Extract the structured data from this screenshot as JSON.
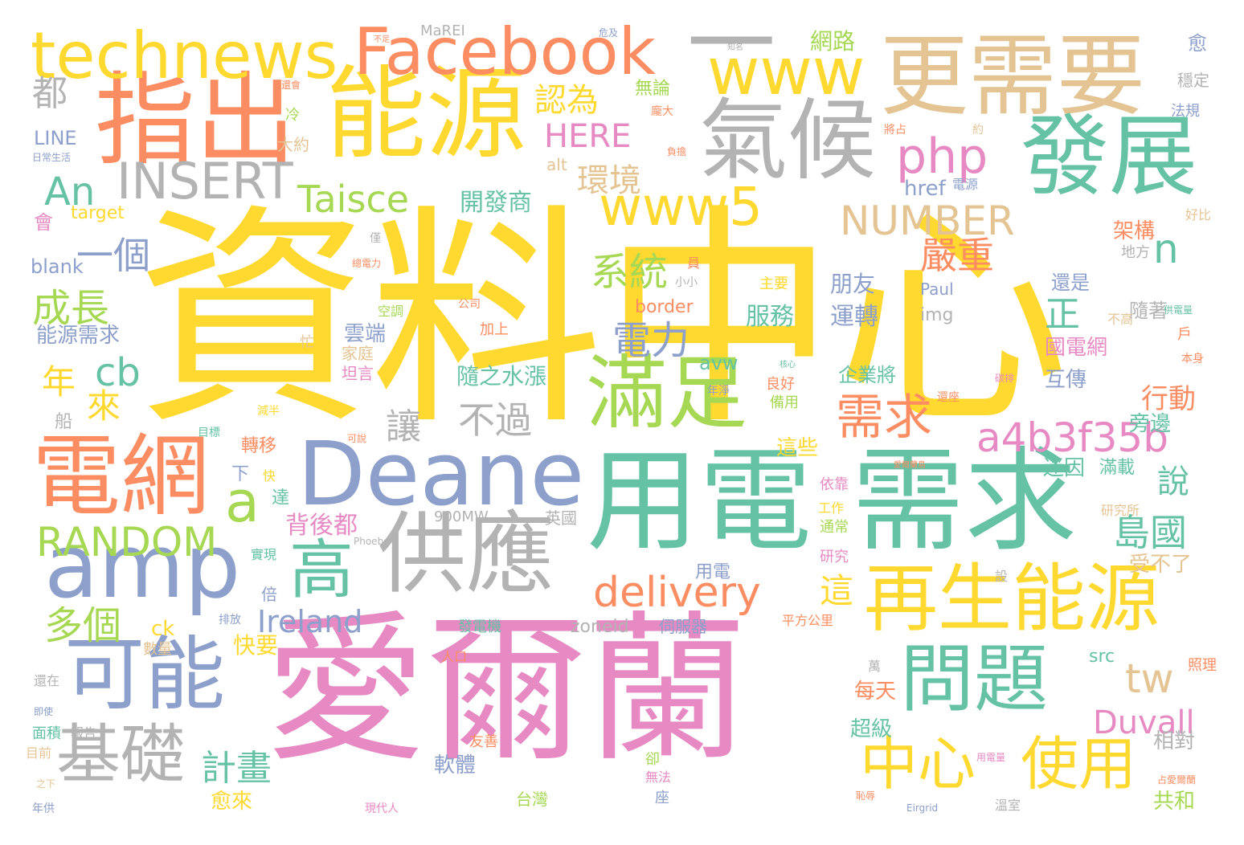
{
  "colors": {
    "yellow": "#FFD92F",
    "pink": "#E78AC3",
    "green": "#66C2A5",
    "blue": "#8DA0CB",
    "gray": "#B3B3B3",
    "orange": "#FC8D62",
    "lime": "#A6D854",
    "tan": "#E5C494"
  },
  "words": [
    {
      "text": "資料中心",
      "color": "yellow"
    },
    {
      "text": "愛爾蘭",
      "color": "pink"
    },
    {
      "text": "用電",
      "color": "green"
    },
    {
      "text": "需求",
      "color": "green"
    },
    {
      "text": "能源",
      "color": "yellow"
    },
    {
      "text": "指出",
      "color": "orange"
    },
    {
      "text": "更需要",
      "color": "tan"
    },
    {
      "text": "氣候",
      "color": "gray"
    },
    {
      "text": "發展",
      "color": "green"
    },
    {
      "text": "Deane",
      "color": "blue"
    },
    {
      "text": "供應",
      "color": "gray"
    },
    {
      "text": "電網",
      "color": "orange"
    },
    {
      "text": "amp",
      "color": "blue"
    },
    {
      "text": "可能",
      "color": "blue"
    },
    {
      "text": "滿足",
      "color": "lime"
    },
    {
      "text": "再生能源",
      "color": "yellow"
    },
    {
      "text": "問題",
      "color": "green"
    },
    {
      "text": "technews",
      "color": "yellow"
    },
    {
      "text": "Facebook",
      "color": "orange"
    },
    {
      "text": "www",
      "color": "yellow"
    },
    {
      "text": "www5",
      "color": "yellow"
    },
    {
      "text": "基礎",
      "color": "gray"
    },
    {
      "text": "中心",
      "color": "yellow"
    },
    {
      "text": "使用",
      "color": "yellow"
    },
    {
      "text": "一",
      "color": "gray"
    },
    {
      "text": "高",
      "color": "green"
    },
    {
      "text": "php",
      "color": "pink"
    },
    {
      "text": "需求",
      "color": "orange"
    },
    {
      "text": "INSERT",
      "color": "gray"
    },
    {
      "text": "a4b3f35b",
      "color": "pink"
    },
    {
      "text": "NUMBER",
      "color": "tan"
    },
    {
      "text": "delivery",
      "color": "orange"
    },
    {
      "text": "RANDOM",
      "color": "lime"
    },
    {
      "text": "tw",
      "color": "tan"
    },
    {
      "text": "Taisce",
      "color": "lime"
    },
    {
      "text": "An",
      "color": "green"
    },
    {
      "text": "a",
      "color": "lime"
    },
    {
      "text": "n",
      "color": "green"
    },
    {
      "text": "cb",
      "color": "green"
    },
    {
      "text": "不過",
      "color": "gray"
    },
    {
      "text": "電力",
      "color": "blue"
    },
    {
      "text": "系統",
      "color": "lime"
    },
    {
      "text": "成長",
      "color": "lime"
    },
    {
      "text": "一個",
      "color": "blue"
    },
    {
      "text": "都",
      "color": "gray"
    },
    {
      "text": "多個",
      "color": "lime"
    },
    {
      "text": "環境",
      "color": "tan"
    },
    {
      "text": "認為",
      "color": "yellow"
    },
    {
      "text": "HERE",
      "color": "pink"
    },
    {
      "text": "嚴重",
      "color": "orange"
    },
    {
      "text": "島國",
      "color": "green"
    },
    {
      "text": "Duvall",
      "color": "pink"
    },
    {
      "text": "計畫",
      "color": "green"
    },
    {
      "text": "Ireland",
      "color": "blue"
    },
    {
      "text": "讓",
      "color": "gray"
    },
    {
      "text": "正",
      "color": "green"
    },
    {
      "text": "這",
      "color": "yellow"
    },
    {
      "text": "說",
      "color": "green"
    },
    {
      "text": "行動",
      "color": "orange"
    },
    {
      "text": "來",
      "color": "yellow"
    },
    {
      "text": "年",
      "color": "yellow"
    },
    {
      "text": "開發商",
      "color": "green"
    },
    {
      "text": "雲端",
      "color": "blue"
    },
    {
      "text": "能源需求",
      "color": "blue"
    },
    {
      "text": "隨之水漲",
      "color": "green"
    },
    {
      "text": "運轉",
      "color": "blue"
    },
    {
      "text": "服務",
      "color": "green"
    },
    {
      "text": "朋友",
      "color": "blue"
    },
    {
      "text": "企業將",
      "color": "green"
    },
    {
      "text": "國電網",
      "color": "pink"
    },
    {
      "text": "互傳",
      "color": "blue"
    },
    {
      "text": "還是",
      "color": "blue"
    },
    {
      "text": "架構",
      "color": "orange"
    },
    {
      "text": "隨著",
      "color": "gray"
    },
    {
      "text": "迷因",
      "color": "green"
    },
    {
      "text": "旁邊",
      "color": "green"
    },
    {
      "text": "滿載",
      "color": "green"
    },
    {
      "text": "研究所",
      "color": "tan"
    },
    {
      "text": "受不了",
      "color": "tan"
    },
    {
      "text": "轉移",
      "color": "orange"
    },
    {
      "text": "這些",
      "color": "yellow"
    },
    {
      "text": "背後都",
      "color": "pink"
    },
    {
      "text": "快要",
      "color": "yellow"
    },
    {
      "text": "愈來",
      "color": "yellow"
    },
    {
      "text": "軟體",
      "color": "blue"
    },
    {
      "text": "每天",
      "color": "orange"
    },
    {
      "text": "超級",
      "color": "green"
    },
    {
      "text": "相對",
      "color": "gray"
    },
    {
      "text": "共和",
      "color": "lime"
    },
    {
      "text": "LINE",
      "color": "blue"
    },
    {
      "text": "blank",
      "color": "blue"
    },
    {
      "text": "target",
      "color": "yellow"
    },
    {
      "text": "href",
      "color": "blue"
    },
    {
      "text": "img",
      "color": "gray"
    },
    {
      "text": "border",
      "color": "orange"
    },
    {
      "text": "avw",
      "color": "green"
    },
    {
      "text": "alt",
      "color": "tan"
    },
    {
      "text": "ck",
      "color": "yellow"
    },
    {
      "text": "zoneid",
      "color": "gray"
    },
    {
      "text": "src",
      "color": "green"
    },
    {
      "text": "900MW",
      "color": "gray"
    },
    {
      "text": "Paul",
      "color": "blue"
    },
    {
      "text": "MaREI",
      "color": "gray"
    },
    {
      "text": "網路",
      "color": "lime"
    },
    {
      "text": "無論",
      "color": "lime"
    },
    {
      "text": "愈",
      "color": "blue"
    },
    {
      "text": "穩定",
      "color": "gray"
    },
    {
      "text": "法規",
      "color": "blue"
    },
    {
      "text": "大約",
      "color": "tan"
    },
    {
      "text": "家庭",
      "color": "tan"
    },
    {
      "text": "加上",
      "color": "orange"
    },
    {
      "text": "用電",
      "color": "blue"
    },
    {
      "text": "伺服器",
      "color": "blue"
    },
    {
      "text": "台灣",
      "color": "lime"
    },
    {
      "text": "英國",
      "color": "gray"
    },
    {
      "text": "地方",
      "color": "gray"
    },
    {
      "text": "好比",
      "color": "tan"
    },
    {
      "text": "主要",
      "color": "yellow"
    },
    {
      "text": "電源",
      "color": "blue"
    },
    {
      "text": "平方公里",
      "color": "orange"
    },
    {
      "text": "依靠",
      "color": "pink"
    },
    {
      "text": "通常",
      "color": "lime"
    },
    {
      "text": "工作",
      "color": "yellow"
    },
    {
      "text": "研究",
      "color": "pink"
    },
    {
      "text": "會",
      "color": "pink"
    },
    {
      "text": "船",
      "color": "gray"
    },
    {
      "text": "下",
      "color": "blue"
    },
    {
      "text": "達",
      "color": "green"
    },
    {
      "text": "倍",
      "color": "blue"
    },
    {
      "text": "實現",
      "color": "green"
    },
    {
      "text": "數量",
      "color": "tan"
    },
    {
      "text": "面積",
      "color": "green"
    },
    {
      "text": "報告",
      "color": "gray"
    },
    {
      "text": "目前",
      "color": "tan"
    },
    {
      "text": "還在",
      "color": "gray"
    },
    {
      "text": "友善",
      "color": "orange"
    },
    {
      "text": "人口",
      "color": "orange"
    },
    {
      "text": "卻",
      "color": "lime"
    },
    {
      "text": "無法",
      "color": "pink"
    },
    {
      "text": "座",
      "color": "blue"
    },
    {
      "text": "坦言",
      "color": "pink"
    },
    {
      "text": "減半",
      "color": "yellow"
    },
    {
      "text": "忙",
      "color": "tan"
    },
    {
      "text": "照理",
      "color": "orange"
    },
    {
      "text": "溫室",
      "color": "gray"
    },
    {
      "text": "發電機",
      "color": "green"
    },
    {
      "text": "良好",
      "color": "orange"
    },
    {
      "text": "備用",
      "color": "lime"
    },
    {
      "text": "年淨",
      "color": "blue"
    },
    {
      "text": "可說",
      "color": "orange"
    },
    {
      "text": "快",
      "color": "yellow"
    },
    {
      "text": "冷",
      "color": "lime"
    },
    {
      "text": "將占",
      "color": "orange"
    },
    {
      "text": "約",
      "color": "tan"
    },
    {
      "text": "員",
      "color": "orange"
    },
    {
      "text": "僅",
      "color": "gray"
    },
    {
      "text": "戶",
      "color": "orange"
    },
    {
      "text": "本身",
      "color": "orange"
    },
    {
      "text": "不高",
      "color": "tan"
    },
    {
      "text": "設",
      "color": "gray"
    },
    {
      "text": "萬",
      "color": "gray"
    },
    {
      "text": "空調",
      "color": "lime"
    },
    {
      "text": "公司",
      "color": "orange"
    },
    {
      "text": "小小",
      "color": "gray"
    },
    {
      "text": "龐大",
      "color": "orange"
    },
    {
      "text": "排放",
      "color": "blue"
    },
    {
      "text": "目標",
      "color": "green"
    },
    {
      "text": "現代人",
      "color": "pink"
    },
    {
      "text": "年供",
      "color": "blue"
    },
    {
      "text": "供電量",
      "color": "green"
    },
    {
      "text": "用電量",
      "color": "pink"
    },
    {
      "text": "占愛爾蘭",
      "color": "orange"
    },
    {
      "text": "總電力",
      "color": "orange"
    },
    {
      "text": "還會",
      "color": "orange"
    },
    {
      "text": "日常生活",
      "color": "blue"
    },
    {
      "text": "Eirgrid",
      "color": "blue"
    },
    {
      "text": "Phoebe",
      "color": "gray"
    },
    {
      "text": "負擔",
      "color": "orange"
    },
    {
      "text": "危及",
      "color": "blue"
    },
    {
      "text": "碳排",
      "color": "pink"
    },
    {
      "text": "愛爾蘭島",
      "color": "orange"
    },
    {
      "text": "之下",
      "color": "tan"
    },
    {
      "text": "恥辱",
      "color": "orange"
    },
    {
      "text": "即使",
      "color": "blue"
    },
    {
      "text": "還座",
      "color": "orange"
    },
    {
      "text": "核心",
      "color": "green"
    },
    {
      "text": "不足",
      "color": "orange"
    },
    {
      "text": "知名",
      "color": "gray"
    }
  ]
}
